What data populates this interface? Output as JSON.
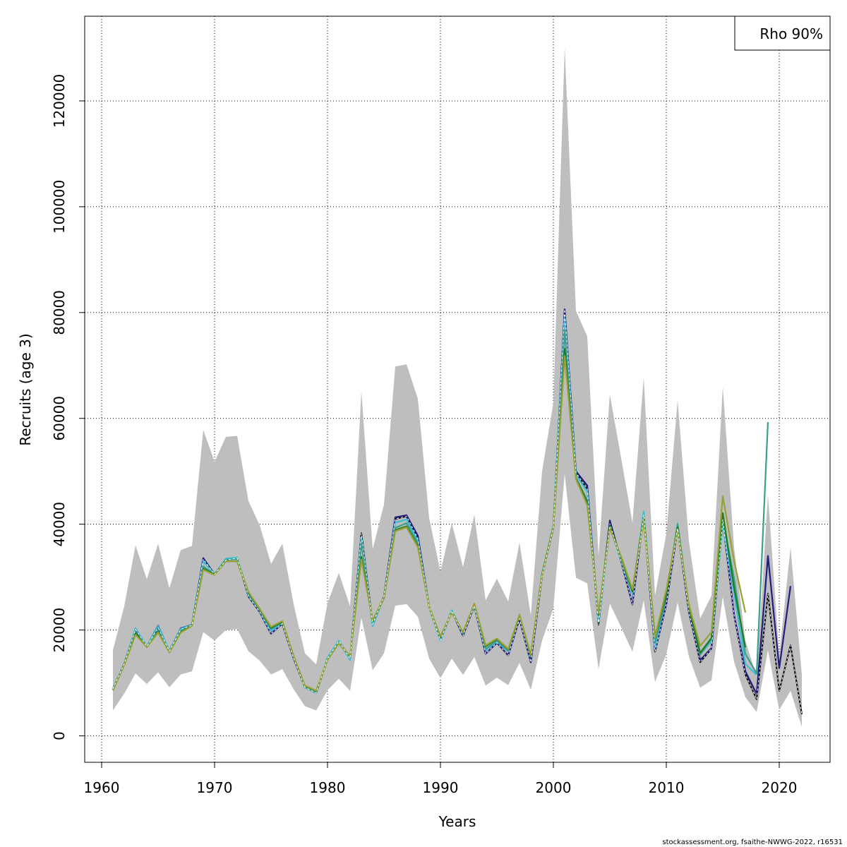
{
  "chart_data": {
    "type": "line",
    "xlabel": "Years",
    "ylabel": "Recruits (age 3)",
    "legend": {
      "text": "Rho 90%",
      "placement": "top-right"
    },
    "footer": "stockassessment.org, fsaithe-NWWG-2022, r16531",
    "grid": true,
    "xlim": [
      1958.5,
      2024.5
    ],
    "ylim": [
      -5000,
      136000
    ],
    "xticks": [
      1960,
      1970,
      1980,
      1990,
      2000,
      2010,
      2020
    ],
    "yticks": [
      0,
      20000,
      40000,
      60000,
      80000,
      100000,
      120000
    ],
    "band": {
      "color": "#bebebe",
      "x": [
        1961,
        1962,
        1963,
        1964,
        1965,
        1966,
        1967,
        1968,
        1969,
        1970,
        1971,
        1972,
        1973,
        1974,
        1975,
        1976,
        1977,
        1978,
        1979,
        1980,
        1981,
        1982,
        1983,
        1984,
        1985,
        1986,
        1987,
        1988,
        1989,
        1990,
        1991,
        1992,
        1993,
        1994,
        1995,
        1996,
        1997,
        1998,
        1999,
        2000,
        2001,
        2002,
        2003,
        2004,
        2005,
        2006,
        2007,
        2008,
        2009,
        2010,
        2011,
        2012,
        2013,
        2014,
        2015,
        2016,
        2017,
        2018,
        2019,
        2020,
        2021,
        2022
      ],
      "lower": [
        4800,
        8000,
        11800,
        9800,
        12000,
        9200,
        11600,
        12200,
        19600,
        18000,
        20000,
        20200,
        16000,
        14200,
        11600,
        12600,
        8800,
        5600,
        4800,
        8600,
        10800,
        8500,
        22300,
        12400,
        15600,
        24600,
        24900,
        22500,
        14600,
        10900,
        14600,
        11500,
        14900,
        9500,
        11000,
        9600,
        13800,
        8700,
        18000,
        24100,
        49500,
        29900,
        28800,
        12600,
        25000,
        20500,
        15900,
        25600,
        10200,
        15400,
        25200,
        15000,
        9100,
        10500,
        26300,
        14000,
        7300,
        4500,
        16200,
        4900,
        8500,
        1700
      ],
      "upper": [
        16200,
        24500,
        36000,
        29600,
        36300,
        27900,
        35100,
        35900,
        57800,
        51800,
        56500,
        56700,
        44400,
        39800,
        32500,
        36300,
        24900,
        15600,
        13500,
        25100,
        30800,
        24500,
        65100,
        35300,
        43700,
        69800,
        70200,
        63700,
        41200,
        31000,
        40200,
        31900,
        41800,
        25600,
        29700,
        25400,
        36500,
        22800,
        50000,
        63000,
        130200,
        80300,
        75500,
        34000,
        64500,
        52500,
        40300,
        67800,
        26500,
        38200,
        63400,
        36800,
        22200,
        26500,
        66000,
        35600,
        18000,
        11200,
        45600,
        15300,
        35600,
        11600
      ]
    },
    "series": [
      {
        "color": "#000000",
        "dashed": true,
        "values": [
          8900,
          13600,
          20100,
          16900,
          20400,
          16000,
          20100,
          20900,
          33400,
          30500,
          33200,
          33600,
          26300,
          23400,
          19300,
          21200,
          14600,
          9200,
          8100,
          14600,
          17900,
          14600,
          38300,
          21100,
          26400,
          41000,
          41500,
          37300,
          24400,
          18000,
          23700,
          18900,
          24600,
          15500,
          17600,
          15200,
          22100,
          13900,
          30300,
          39300,
          80600,
          49700,
          46700,
          21000,
          40100,
          33000,
          24800,
          41800,
          15900,
          24800,
          39200,
          23400,
          13900,
          16500,
          40900,
          22800,
          11600,
          6900,
          26900,
          8500,
          17100,
          4100
        ]
      },
      {
        "color": "#1f1d7e",
        "dashed": false,
        "values": [
          8900,
          13600,
          20300,
          16900,
          20800,
          16000,
          20300,
          21000,
          33600,
          30500,
          33300,
          33600,
          26400,
          23400,
          19300,
          21200,
          14600,
          9200,
          8100,
          14600,
          17900,
          14600,
          37600,
          21100,
          26400,
          41300,
          41700,
          37800,
          24400,
          18000,
          23600,
          18900,
          24600,
          15500,
          17600,
          15200,
          22100,
          13900,
          30300,
          39300,
          80600,
          50000,
          47300,
          21600,
          40700,
          33000,
          24900,
          41800,
          16000,
          24900,
          39400,
          23500,
          14300,
          16600,
          40900,
          22900,
          12200,
          7900,
          34000,
          12800,
          28300
        ]
      },
      {
        "color": "#3bbdd3",
        "dashed": false,
        "values": [
          8900,
          13600,
          20300,
          16900,
          20700,
          16000,
          20200,
          21000,
          33000,
          30500,
          33500,
          33700,
          26600,
          23700,
          19800,
          21400,
          14800,
          9200,
          8100,
          14800,
          18000,
          14300,
          37400,
          20700,
          26300,
          40300,
          40900,
          36900,
          24400,
          17900,
          23800,
          19300,
          24700,
          16200,
          17800,
          16000,
          22700,
          15000,
          30700,
          39700,
          79000,
          49400,
          46100,
          21500,
          39500,
          33200,
          26800,
          42400,
          16800,
          26500,
          40200,
          24500,
          15400,
          17900,
          40100,
          27000,
          13600,
          11500
        ]
      },
      {
        "color": "#3aa08c",
        "dashed": false,
        "values": [
          8700,
          13500,
          19500,
          16800,
          19800,
          15800,
          19800,
          21000,
          32000,
          30500,
          33300,
          33400,
          27000,
          23800,
          20200,
          21500,
          15000,
          9300,
          8300,
          14400,
          17500,
          14900,
          36400,
          21300,
          26300,
          39300,
          40200,
          36400,
          24400,
          18400,
          23400,
          19500,
          24700,
          16400,
          18000,
          16100,
          22700,
          15000,
          30600,
          39500,
          76700,
          48800,
          44500,
          22700,
          39500,
          33400,
          27500,
          41600,
          17500,
          26500,
          40000,
          24200,
          15300,
          18400,
          40800,
          29800,
          15500,
          11800,
          59300
        ]
      },
      {
        "color": "#1e7d1e",
        "dashed": false,
        "values": [
          8600,
          13500,
          19400,
          16800,
          19600,
          15800,
          19600,
          20900,
          31600,
          30500,
          33000,
          33000,
          27000,
          23900,
          20400,
          21500,
          15000,
          9400,
          8400,
          14400,
          17600,
          15000,
          33800,
          21700,
          26100,
          38900,
          39600,
          35900,
          24400,
          18600,
          23400,
          19500,
          24900,
          16900,
          18300,
          16300,
          22800,
          15200,
          30400,
          39500,
          73200,
          48600,
          44200,
          22700,
          39700,
          33600,
          27300,
          41000,
          18800,
          26700,
          39400,
          24200,
          15700,
          18500,
          42100,
          28000,
          16700
        ]
      },
      {
        "color": "#9aa035",
        "dashed": false,
        "values": [
          8600,
          13400,
          19100,
          16800,
          19500,
          15800,
          19500,
          20800,
          31400,
          30400,
          33000,
          33000,
          27200,
          24000,
          20600,
          21700,
          15100,
          9500,
          8500,
          14400,
          17500,
          15100,
          33300,
          21800,
          26200,
          38700,
          39400,
          35700,
          24400,
          18800,
          23300,
          19600,
          25000,
          17100,
          18400,
          16400,
          22900,
          15300,
          30300,
          39400,
          71800,
          48500,
          43600,
          23100,
          39200,
          33900,
          27700,
          40600,
          18700,
          27600,
          39000,
          24800,
          17000,
          19600,
          45300,
          33100,
          23300
        ]
      }
    ]
  }
}
